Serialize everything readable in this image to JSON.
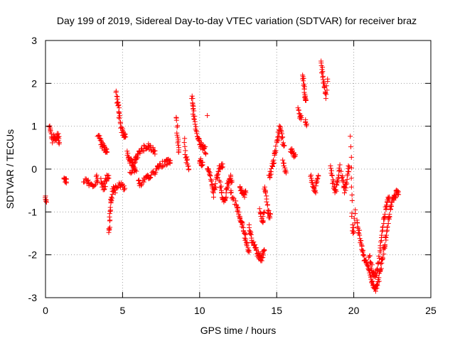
{
  "chart_data": {
    "type": "scatter",
    "title": "Day 199 of 2019, Sidereal Day-to-day VTEC variation (SDTVAR) for receiver braz",
    "xlabel": "GPS time / hours",
    "ylabel": "SDTVAR / TECUs",
    "xlim": [
      0,
      25
    ],
    "ylim": [
      -3,
      3
    ],
    "xticks": [
      "0",
      "5",
      "10",
      "15",
      "20",
      "25"
    ],
    "yticks": [
      "-3",
      "-2",
      "-1",
      "0",
      "1",
      "2",
      "3"
    ],
    "grid": true,
    "marker": "+",
    "color": "#ff0000",
    "series": [
      {
        "name": "SDTVAR",
        "segments": [
          [
            [
              0.0,
              -0.68
            ],
            [
              0.05,
              -0.72
            ]
          ],
          [
            [
              0.25,
              0.95
            ],
            [
              0.35,
              0.85
            ],
            [
              0.45,
              0.65
            ],
            [
              0.55,
              0.75
            ],
            [
              0.65,
              0.7
            ],
            [
              0.75,
              0.8
            ],
            [
              0.85,
              0.75
            ],
            [
              0.9,
              0.62
            ]
          ],
          [
            [
              1.2,
              -0.15
            ],
            [
              1.3,
              -0.25
            ],
            [
              1.35,
              -0.3
            ]
          ],
          [
            [
              2.5,
              -0.25
            ],
            [
              2.7,
              -0.3
            ],
            [
              2.9,
              -0.35
            ],
            [
              3.1,
              -0.45
            ],
            [
              3.3,
              -0.2
            ],
            [
              3.4,
              -0.3
            ]
          ],
          [
            [
              3.4,
              0.8
            ],
            [
              3.5,
              0.7
            ],
            [
              3.6,
              0.6
            ],
            [
              3.7,
              0.55
            ],
            [
              3.8,
              0.5
            ],
            [
              3.9,
              0.45
            ],
            [
              4.0,
              0.4
            ]
          ],
          [
            [
              3.6,
              -0.25
            ],
            [
              3.7,
              -0.4
            ],
            [
              3.8,
              -0.45
            ],
            [
              3.9,
              -0.3
            ],
            [
              4.0,
              -0.2
            ],
            [
              4.1,
              -0.15
            ]
          ],
          [
            [
              4.1,
              -1.5
            ],
            [
              4.15,
              -1.3
            ],
            [
              4.2,
              -1.0
            ],
            [
              4.25,
              -0.8
            ],
            [
              4.3,
              -0.6
            ],
            [
              4.4,
              -0.45
            ],
            [
              4.5,
              -0.5
            ],
            [
              4.6,
              -0.4
            ],
            [
              4.8,
              -0.35
            ],
            [
              5.0,
              -0.4
            ],
            [
              5.15,
              -0.45
            ]
          ],
          [
            [
              4.6,
              1.8
            ],
            [
              4.65,
              1.6
            ],
            [
              4.7,
              1.5
            ],
            [
              4.75,
              1.4
            ],
            [
              4.8,
              1.2
            ],
            [
              4.9,
              1.0
            ],
            [
              5.0,
              0.85
            ],
            [
              5.1,
              0.8
            ],
            [
              5.2,
              0.75
            ]
          ],
          [
            [
              5.3,
              0.4
            ],
            [
              5.4,
              0.3
            ],
            [
              5.5,
              0.2
            ],
            [
              5.6,
              0.15
            ],
            [
              5.7,
              0.1
            ],
            [
              5.8,
              0.2
            ],
            [
              5.9,
              0.25
            ],
            [
              6.0,
              0.35
            ],
            [
              6.2,
              0.4
            ],
            [
              6.4,
              0.5
            ],
            [
              6.6,
              0.55
            ],
            [
              6.8,
              0.5
            ],
            [
              7.0,
              0.45
            ],
            [
              7.1,
              0.35
            ]
          ],
          [
            [
              5.5,
              -0.05
            ],
            [
              5.7,
              0.0
            ],
            [
              5.9,
              -0.05
            ]
          ],
          [
            [
              6.0,
              -0.3
            ],
            [
              6.2,
              -0.35
            ],
            [
              6.4,
              -0.25
            ],
            [
              6.6,
              -0.2
            ],
            [
              6.8,
              -0.15
            ],
            [
              7.0,
              -0.1
            ],
            [
              7.2,
              0.0
            ],
            [
              7.4,
              0.05
            ],
            [
              7.6,
              0.12
            ],
            [
              7.8,
              0.15
            ],
            [
              8.0,
              0.18
            ],
            [
              8.1,
              0.2
            ]
          ],
          [
            [
              8.5,
              1.25
            ],
            [
              8.55,
              0.9
            ],
            [
              8.6,
              0.65
            ],
            [
              8.65,
              0.4
            ]
          ],
          [
            [
              9.0,
              0.7
            ],
            [
              9.1,
              0.3
            ],
            [
              9.2,
              0.15
            ],
            [
              9.3,
              0.0
            ]
          ],
          [
            [
              9.5,
              1.7
            ],
            [
              9.55,
              1.5
            ],
            [
              9.6,
              1.3
            ],
            [
              9.7,
              1.1
            ],
            [
              9.8,
              0.85
            ],
            [
              9.9,
              0.7
            ],
            [
              10.0,
              0.6
            ],
            [
              10.1,
              0.55
            ],
            [
              10.2,
              0.5
            ],
            [
              10.3,
              0.55
            ],
            [
              10.4,
              0.35
            ]
          ],
          [
            [
              10.5,
              1.25
            ]
          ],
          [
            [
              10.0,
              0.2
            ],
            [
              10.1,
              0.15
            ],
            [
              10.2,
              0.1
            ]
          ],
          [
            [
              10.5,
              0.0
            ],
            [
              10.6,
              -0.1
            ],
            [
              10.7,
              -0.2
            ],
            [
              10.8,
              -0.35
            ],
            [
              10.9,
              -0.6
            ],
            [
              11.0,
              -0.4
            ],
            [
              11.1,
              -0.2
            ],
            [
              11.2,
              -0.1
            ],
            [
              11.3,
              0.05
            ],
            [
              11.4,
              0.1
            ],
            [
              11.5,
              0.05
            ]
          ],
          [
            [
              11.3,
              -0.3
            ],
            [
              11.4,
              -0.5
            ],
            [
              11.5,
              -0.7
            ],
            [
              11.6,
              -0.8
            ],
            [
              11.7,
              -0.6
            ],
            [
              11.8,
              -0.4
            ],
            [
              11.9,
              -0.3
            ],
            [
              12.0,
              -0.2
            ],
            [
              12.1,
              -0.3
            ]
          ],
          [
            [
              12.0,
              -0.5
            ],
            [
              12.2,
              -0.7
            ],
            [
              12.4,
              -0.85
            ],
            [
              12.5,
              -1.0
            ],
            [
              12.6,
              -1.1
            ],
            [
              12.7,
              -1.2
            ],
            [
              12.8,
              -1.35
            ],
            [
              12.9,
              -1.5
            ],
            [
              13.0,
              -1.65
            ],
            [
              13.1,
              -1.8
            ],
            [
              13.2,
              -1.9
            ]
          ],
          [
            [
              12.6,
              -0.45
            ],
            [
              12.7,
              -0.55
            ],
            [
              12.8,
              -0.5
            ],
            [
              12.9,
              -0.6
            ],
            [
              13.0,
              -0.55
            ]
          ],
          [
            [
              13.2,
              -1.35
            ],
            [
              13.3,
              -1.5
            ],
            [
              13.4,
              -1.65
            ],
            [
              13.5,
              -1.75
            ],
            [
              13.6,
              -1.85
            ],
            [
              13.7,
              -1.95
            ],
            [
              13.8,
              -2.0
            ],
            [
              13.9,
              -2.05
            ],
            [
              14.0,
              -2.1
            ],
            [
              14.1,
              -2.0
            ],
            [
              14.2,
              -1.9
            ]
          ],
          [
            [
              13.9,
              -0.95
            ],
            [
              14.0,
              -1.1
            ],
            [
              14.1,
              -1.2
            ],
            [
              14.2,
              -1.0
            ]
          ],
          [
            [
              14.2,
              -0.4
            ],
            [
              14.3,
              -0.5
            ],
            [
              14.4,
              -0.9
            ],
            [
              14.5,
              -1.1
            ],
            [
              14.6,
              -1.05
            ]
          ],
          [
            [
              14.5,
              -0.2
            ],
            [
              14.6,
              -0.1
            ],
            [
              14.7,
              0.05
            ],
            [
              14.8,
              0.2
            ],
            [
              14.9,
              0.4
            ],
            [
              15.0,
              0.6
            ],
            [
              15.1,
              0.8
            ],
            [
              15.2,
              0.95
            ],
            [
              15.3,
              0.85
            ],
            [
              15.4,
              0.65
            ],
            [
              15.5,
              0.55
            ]
          ],
          [
            [
              15.4,
              0.2
            ],
            [
              15.5,
              0.05
            ],
            [
              15.6,
              -0.05
            ]
          ],
          [
            [
              15.9,
              0.45
            ],
            [
              16.0,
              0.4
            ],
            [
              16.1,
              0.35
            ],
            [
              16.2,
              0.3
            ]
          ],
          [
            [
              16.4,
              1.4
            ],
            [
              16.5,
              1.25
            ],
            [
              16.6,
              1.2
            ]
          ],
          [
            [
              16.7,
              2.2
            ],
            [
              16.75,
              2.0
            ],
            [
              16.8,
              1.8
            ],
            [
              16.85,
              1.7
            ],
            [
              16.9,
              1.6
            ]
          ],
          [
            [
              16.85,
              1.1
            ],
            [
              16.95,
              1.05
            ]
          ],
          [
            [
              17.2,
              -0.2
            ],
            [
              17.3,
              -0.3
            ],
            [
              17.4,
              -0.4
            ],
            [
              17.5,
              -0.5
            ],
            [
              17.6,
              -0.3
            ],
            [
              17.7,
              -0.15
            ]
          ],
          [
            [
              17.9,
              2.5
            ],
            [
              17.95,
              2.3
            ],
            [
              18.0,
              2.1
            ],
            [
              18.1,
              1.9
            ],
            [
              18.2,
              1.7
            ],
            [
              18.3,
              2.1
            ]
          ],
          [
            [
              18.5,
              0.05
            ],
            [
              18.6,
              -0.2
            ],
            [
              18.7,
              -0.4
            ],
            [
              18.8,
              -0.55
            ],
            [
              18.9,
              -0.35
            ],
            [
              19.0,
              -0.2
            ],
            [
              19.1,
              0.1
            ]
          ],
          [
            [
              19.2,
              -0.1
            ],
            [
              19.3,
              -0.3
            ],
            [
              19.4,
              -0.5
            ],
            [
              19.5,
              -0.35
            ],
            [
              19.6,
              -0.1
            ],
            [
              19.7,
              0.05
            ]
          ],
          [
            [
              19.8,
              0.8
            ],
            [
              19.85,
              -0.4
            ],
            [
              19.9,
              -1.35
            ],
            [
              20.0,
              -1.5
            ],
            [
              20.1,
              -0.95
            ]
          ],
          [
            [
              20.2,
              -1.2
            ],
            [
              20.3,
              -1.4
            ],
            [
              20.4,
              -1.6
            ],
            [
              20.5,
              -1.8
            ],
            [
              20.6,
              -1.95
            ],
            [
              20.7,
              -2.1
            ],
            [
              20.8,
              -2.2
            ],
            [
              20.9,
              -2.3
            ],
            [
              21.0,
              -2.4
            ],
            [
              21.1,
              -2.5
            ],
            [
              21.2,
              -2.6
            ],
            [
              21.3,
              -2.7
            ],
            [
              21.4,
              -2.8
            ],
            [
              21.5,
              -2.75
            ],
            [
              21.6,
              -2.6
            ],
            [
              21.7,
              -2.4
            ],
            [
              21.8,
              -2.2
            ],
            [
              21.9,
              -2.0
            ],
            [
              22.0,
              -1.8
            ],
            [
              22.1,
              -1.6
            ],
            [
              22.2,
              -1.3
            ],
            [
              22.3,
              -1.1
            ],
            [
              22.4,
              -0.9
            ],
            [
              22.5,
              -0.75
            ],
            [
              22.6,
              -0.65
            ],
            [
              22.7,
              -0.6
            ],
            [
              22.8,
              -0.55
            ],
            [
              22.9,
              -0.53
            ]
          ],
          [
            [
              21.0,
              -2.0
            ],
            [
              21.1,
              -2.2
            ],
            [
              21.2,
              -2.35
            ],
            [
              21.3,
              -2.45
            ],
            [
              21.4,
              -2.5
            ],
            [
              21.5,
              -2.4
            ],
            [
              21.6,
              -2.2
            ],
            [
              21.7,
              -1.9
            ],
            [
              21.8,
              -1.6
            ],
            [
              21.9,
              -1.3
            ],
            [
              22.0,
              -1.1
            ],
            [
              22.1,
              -0.9
            ],
            [
              22.2,
              -0.75
            ],
            [
              22.3,
              -0.65
            ]
          ]
        ]
      }
    ]
  }
}
